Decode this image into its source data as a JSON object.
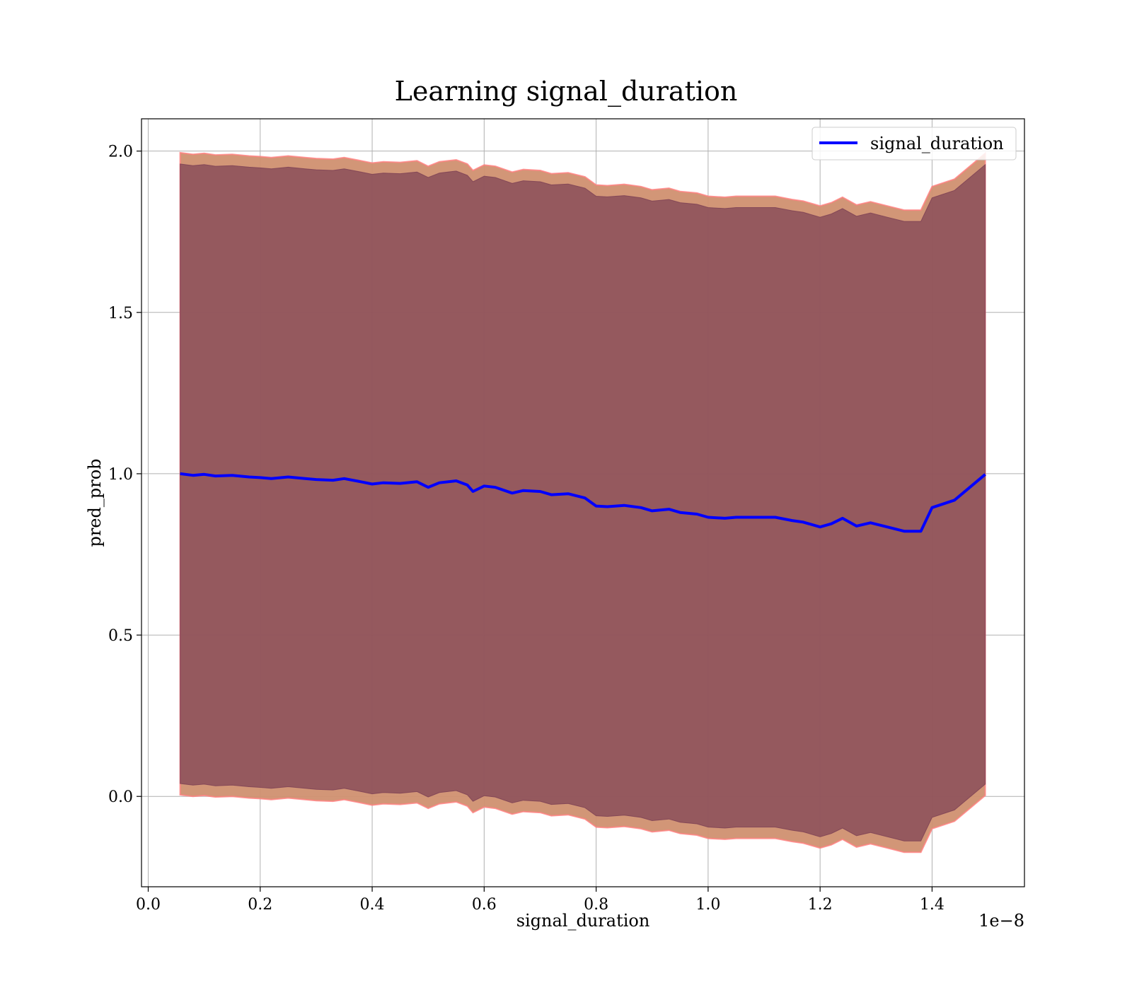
{
  "chart_data": {
    "type": "line",
    "title": "Learning signal_duration",
    "xlabel": "signal_duration",
    "ylabel": "pred_prob",
    "x_offset_text": "1e−8",
    "xlim": [
      -0.012,
      1.565
    ],
    "ylim": [
      -0.28,
      2.1
    ],
    "x_ticks": [
      0.0,
      0.2,
      0.4,
      0.6,
      0.8,
      1.0,
      1.2,
      1.4
    ],
    "x_tick_labels": [
      "0.0",
      "0.2",
      "0.4",
      "0.6",
      "0.8",
      "1.0",
      "1.2",
      "1.4"
    ],
    "y_ticks": [
      0.0,
      0.5,
      1.0,
      1.5,
      2.0
    ],
    "y_tick_labels": [
      "0.0",
      "0.5",
      "1.0",
      "1.5",
      "2.0"
    ],
    "grid": true,
    "legend_position": "top-right",
    "x": [
      0.057,
      0.08,
      0.1,
      0.12,
      0.15,
      0.18,
      0.2,
      0.22,
      0.25,
      0.28,
      0.3,
      0.33,
      0.35,
      0.38,
      0.4,
      0.42,
      0.45,
      0.48,
      0.5,
      0.52,
      0.55,
      0.57,
      0.58,
      0.6,
      0.62,
      0.65,
      0.67,
      0.7,
      0.72,
      0.75,
      0.78,
      0.8,
      0.82,
      0.85,
      0.88,
      0.9,
      0.93,
      0.95,
      0.98,
      1.0,
      1.03,
      1.05,
      1.08,
      1.1,
      1.12,
      1.15,
      1.17,
      1.2,
      1.22,
      1.24,
      1.265,
      1.29,
      1.32,
      1.35,
      1.38,
      1.4,
      1.44,
      1.495
    ],
    "series": [
      {
        "name": "signal_duration",
        "color": "#0000ff",
        "values": [
          1.0,
          0.995,
          0.998,
          0.993,
          0.995,
          0.99,
          0.988,
          0.985,
          0.99,
          0.985,
          0.982,
          0.98,
          0.985,
          0.975,
          0.968,
          0.972,
          0.97,
          0.975,
          0.958,
          0.972,
          0.978,
          0.965,
          0.945,
          0.962,
          0.958,
          0.94,
          0.948,
          0.945,
          0.935,
          0.938,
          0.925,
          0.9,
          0.898,
          0.902,
          0.895,
          0.885,
          0.89,
          0.88,
          0.875,
          0.865,
          0.862,
          0.865,
          0.865,
          0.865,
          0.865,
          0.855,
          0.85,
          0.835,
          0.845,
          0.862,
          0.838,
          0.848,
          0.835,
          0.822,
          0.822,
          0.895,
          0.918,
          0.998
        ]
      }
    ],
    "bands": [
      {
        "color": "#d09070",
        "outline": "#ff8080",
        "upper_delta": 0.995,
        "lower_delta": 0.995
      },
      {
        "color": "#7a3e54",
        "outline": "#7a3e54",
        "upper_delta": 0.96,
        "lower_delta": 0.96
      }
    ]
  }
}
